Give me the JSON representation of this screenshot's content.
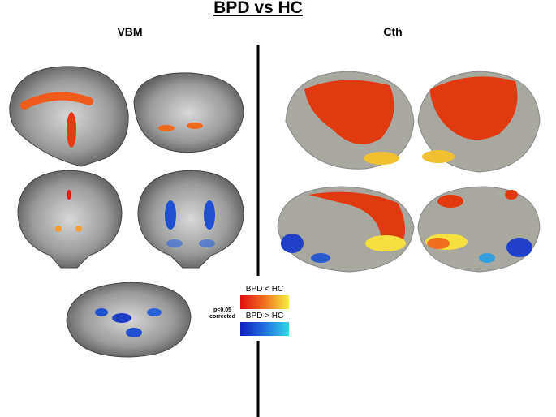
{
  "title": "BPD vs HC",
  "panels": [
    {
      "label": "VBM"
    },
    {
      "label": "Cth"
    }
  ],
  "legend": {
    "significance": [
      "p<0.05",
      "corrected"
    ],
    "items": [
      {
        "label": "BPD < HC"
      },
      {
        "label": "BPD > HC"
      }
    ]
  }
}
